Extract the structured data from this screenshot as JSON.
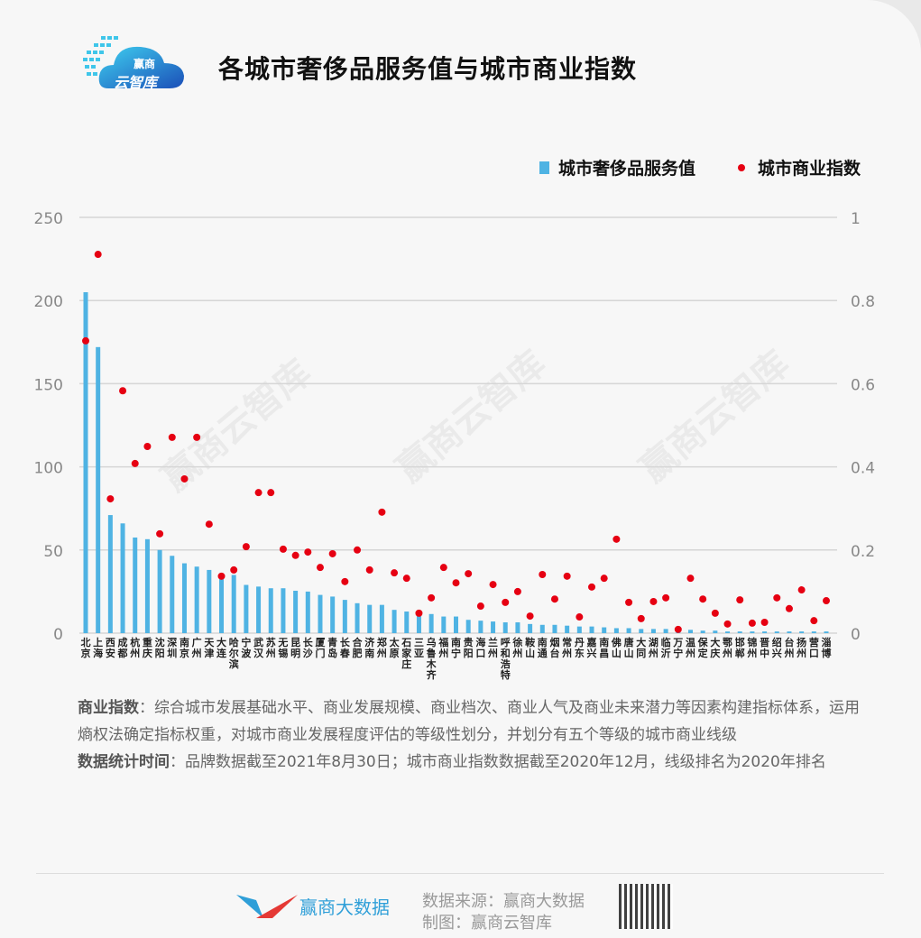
{
  "header": {
    "logo_line1": "赢商",
    "logo_line2": "云智库",
    "title": "各城市奢侈品服务值与城市商业指数"
  },
  "watermark": "赢商云智库",
  "notes": {
    "def_label": "商业指数",
    "def_text": "：综合城市发展基础水平、商业发展规模、商业档次、商业人气及商业未来潜力等因素构建指标体系，运用熵权法确定指标权重，对城市商业发展程度评估的等级性划分，并划分有五个等级的城市商业线级",
    "time_label": "数据统计时间",
    "time_text": "：品牌数据截至2021年8月30日；城市商业指数数据截至2020年12月，线级排名为2020年排名"
  },
  "footer": {
    "brand": "赢商大数据",
    "source": "数据来源：赢商大数据",
    "maker": "制图：赢商云智库"
  },
  "chart_data": {
    "type": "bar+scatter",
    "legend_position": "top-right",
    "grid": true,
    "colors": {
      "bar": "#4fb3e3",
      "dot": "#e60012"
    },
    "y_left": {
      "ylim": [
        0,
        250
      ],
      "ticks": [
        "0",
        "50",
        "100",
        "150",
        "200",
        "250"
      ]
    },
    "y_right": {
      "ylim": [
        0,
        1
      ],
      "ticks": [
        "0",
        "0.2",
        "0.4",
        "0.6",
        "0.8",
        "1"
      ]
    },
    "categories": [
      "北京",
      "上海",
      "西安",
      "成都",
      "杭州",
      "重庆",
      "沈阳",
      "深圳",
      "南京",
      "广州",
      "天津",
      "大连",
      "哈尔滨",
      "宁波",
      "武汉",
      "苏州",
      "无锡",
      "昆明",
      "长沙",
      "厦门",
      "青岛",
      "长春",
      "合肥",
      "济南",
      "郑州",
      "太原",
      "石家庄",
      "三亚",
      "乌鲁木齐",
      "福州",
      "南宁",
      "贵阳",
      "海口",
      "兰州",
      "呼和浩特",
      "徐州",
      "鞍山",
      "南通",
      "烟台",
      "常州",
      "丹东",
      "嘉兴",
      "南昌",
      "佛山",
      "唐山",
      "大同",
      "湖州",
      "临沂",
      "万宁",
      "温州",
      "保定",
      "大庆",
      "鄂州",
      "邯郸",
      "锦州",
      "晋中",
      "绍兴",
      "台州",
      "扬州",
      "营口",
      "淄博"
    ],
    "series": [
      {
        "name": "城市奢侈品服务值",
        "type": "bar",
        "axis": "left",
        "values": [
          205,
          172,
          71,
          66,
          57.5,
          56.5,
          50,
          46.5,
          42,
          40,
          38,
          36,
          35,
          29,
          28,
          27,
          27,
          25.5,
          25,
          23,
          22,
          20,
          18,
          17,
          17,
          14,
          13,
          12,
          11.5,
          10,
          10,
          8,
          7.5,
          7,
          6.5,
          6.5,
          5.5,
          5,
          5,
          4.5,
          4,
          4,
          3.5,
          3,
          3,
          2.5,
          2.5,
          2.5,
          2,
          2,
          1.5,
          1.5,
          1,
          1,
          1,
          1,
          1,
          1,
          1,
          1,
          1
        ]
      },
      {
        "name": "城市商业指数",
        "type": "scatter",
        "axis": "right",
        "values": [
          0.703,
          0.911,
          0.323,
          0.583,
          0.408,
          0.449,
          0.239,
          0.471,
          0.371,
          0.471,
          0.262,
          0.137,
          0.152,
          0.208,
          0.338,
          0.338,
          0.202,
          0.187,
          0.195,
          0.158,
          0.191,
          0.124,
          0.2,
          0.152,
          0.291,
          0.145,
          0.132,
          0.048,
          0.085,
          0.158,
          0.121,
          0.143,
          0.065,
          0.117,
          0.074,
          0.1,
          0.041,
          0.141,
          0.082,
          0.137,
          0.039,
          0.111,
          0.132,
          0.226,
          0.074,
          0.035,
          0.076,
          0.085,
          0.009,
          0.132,
          0.082,
          0.048,
          0.022,
          0.08,
          0.024,
          0.026,
          0.085,
          0.059,
          0.104,
          0.03,
          0.078
        ]
      }
    ]
  }
}
